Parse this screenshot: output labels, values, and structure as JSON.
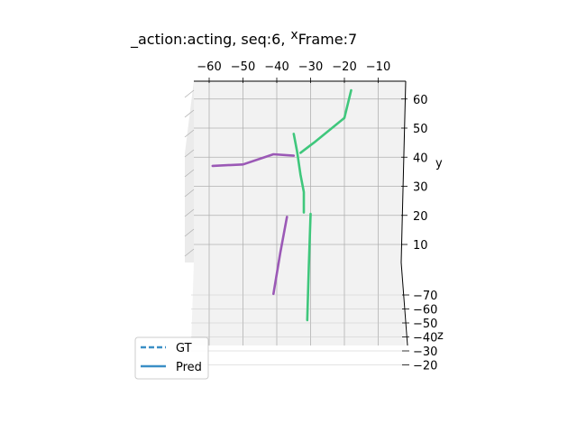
{
  "chart_data": {
    "type": "line",
    "projection": "3d",
    "title": "_action:acting, seq:6,",
    "title_suffix": "Frame:7",
    "axis_marker": "x",
    "xlabel": "",
    "ylabel": "y",
    "zlabel": "z",
    "x_ticks": [
      "−60",
      "−50",
      "−40",
      "−30",
      "−20",
      "−10"
    ],
    "y_ticks": [
      "10",
      "20",
      "30",
      "40",
      "50",
      "60"
    ],
    "z_ticks": [
      "−70",
      "−60",
      "−50",
      "−40",
      "−30",
      "−20"
    ],
    "xlim": [
      -65,
      -2
    ],
    "ylim": [
      -10,
      65
    ],
    "grid": true,
    "legend": {
      "position": "lower-left",
      "entries": [
        {
          "label": "GT",
          "style": "dashed",
          "color": "#3b8fc6"
        },
        {
          "label": "Pred",
          "style": "solid",
          "color": "#3b8fc6"
        }
      ]
    },
    "series": [
      {
        "side": "left",
        "color": "#9b59b6",
        "segments": [
          [
            [
              -59,
              37
            ],
            [
              -50,
              37.5
            ],
            [
              -41,
              41
            ],
            [
              -35,
              40.5
            ]
          ],
          [
            [
              -37,
              19.5
            ],
            [
              -39,
              7
            ],
            [
              -41,
              -7
            ]
          ]
        ]
      },
      {
        "side": "right",
        "color": "#3fc77c",
        "segments": [
          [
            [
              -18,
              63
            ],
            [
              -20,
              53.5
            ],
            [
              -29,
              45
            ],
            [
              -33,
              41.5
            ]
          ],
          [
            [
              -35,
              48
            ],
            [
              -34,
              42
            ],
            [
              -33,
              34
            ],
            [
              -32,
              28
            ],
            [
              -32,
              21
            ]
          ],
          [
            [
              -30,
              20.5
            ],
            [
              -30.5,
              3
            ],
            [
              -31,
              -16
            ]
          ]
        ]
      }
    ]
  }
}
